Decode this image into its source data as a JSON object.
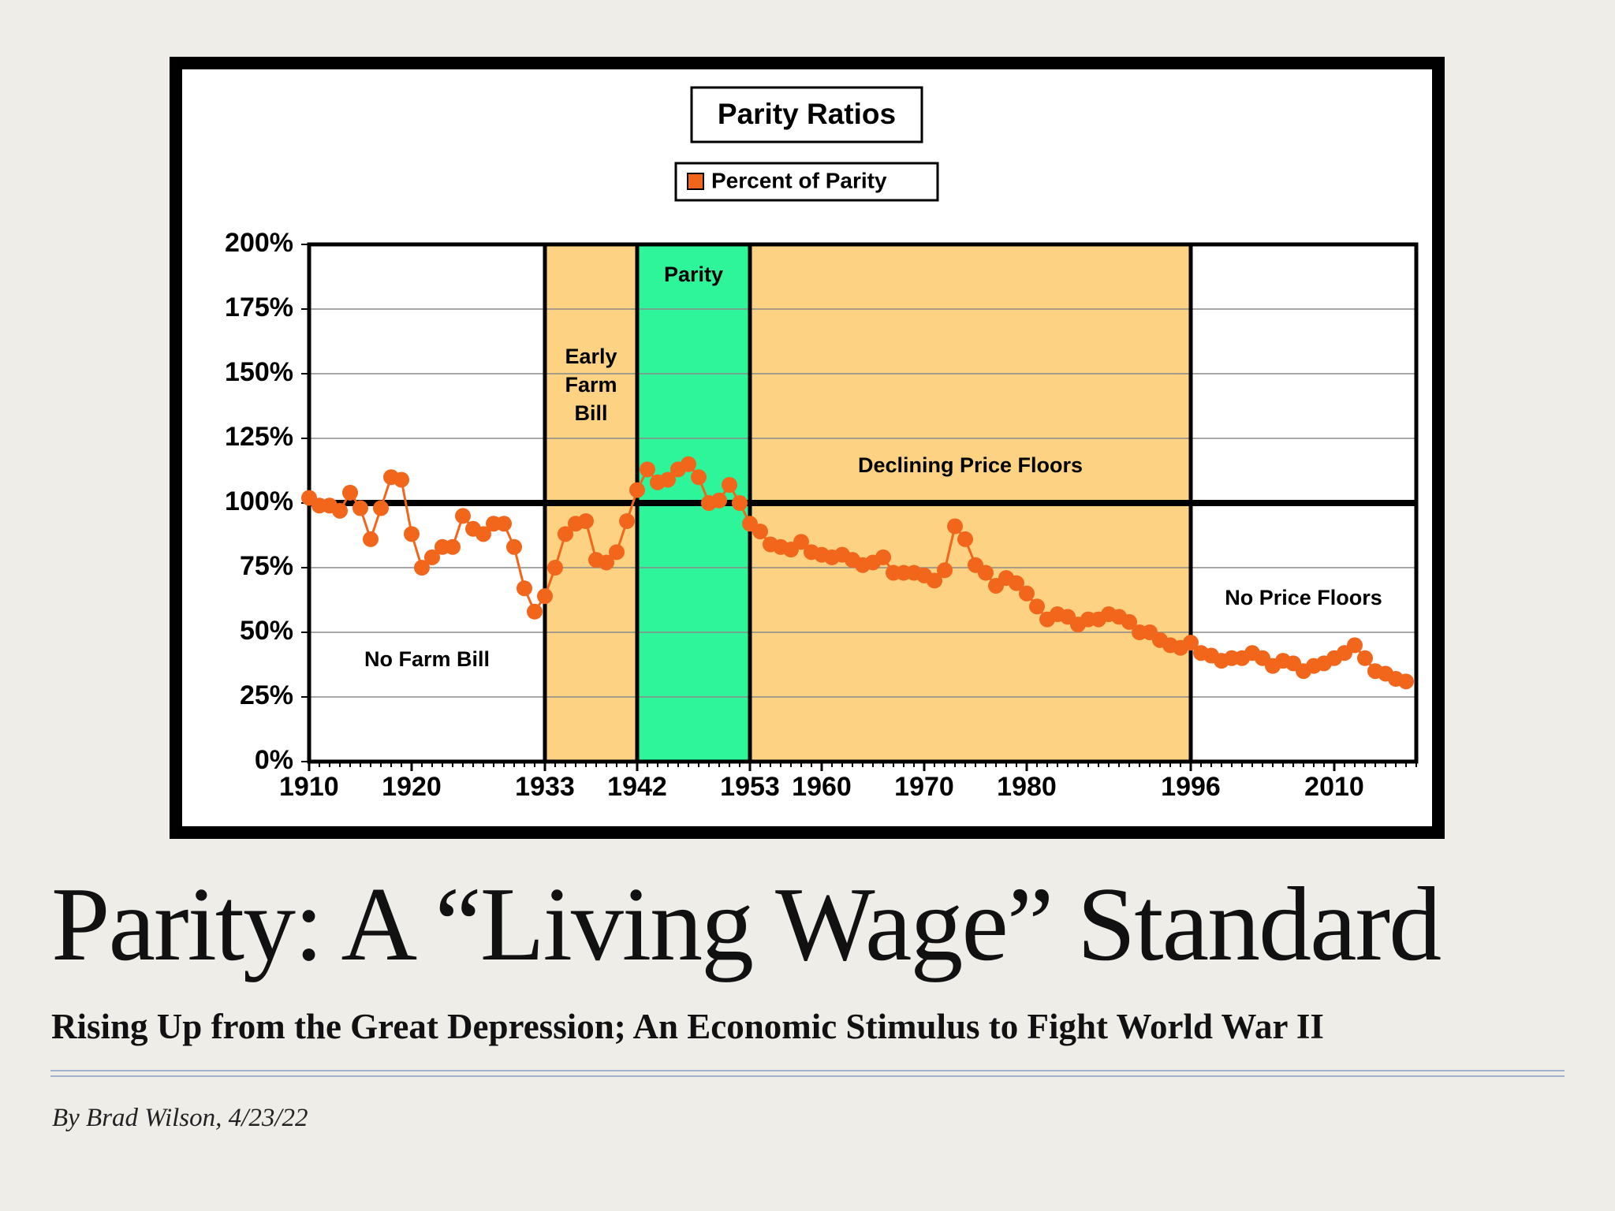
{
  "chart_data": {
    "type": "line",
    "title": "Parity Ratios",
    "x": [
      1910,
      1911,
      1912,
      1913,
      1914,
      1915,
      1916,
      1917,
      1918,
      1919,
      1920,
      1921,
      1922,
      1923,
      1924,
      1925,
      1926,
      1927,
      1928,
      1929,
      1930,
      1931,
      1932,
      1933,
      1934,
      1935,
      1936,
      1937,
      1938,
      1939,
      1940,
      1941,
      1942,
      1943,
      1944,
      1945,
      1946,
      1947,
      1948,
      1949,
      1950,
      1951,
      1952,
      1953,
      1954,
      1955,
      1956,
      1957,
      1958,
      1959,
      1960,
      1961,
      1962,
      1963,
      1964,
      1965,
      1966,
      1967,
      1968,
      1969,
      1970,
      1971,
      1972,
      1973,
      1974,
      1975,
      1976,
      1977,
      1978,
      1979,
      1980,
      1981,
      1982,
      1983,
      1984,
      1985,
      1986,
      1987,
      1988,
      1989,
      1990,
      1991,
      1992,
      1993,
      1994,
      1995,
      1996,
      1997,
      1998,
      1999,
      2000,
      2001,
      2002,
      2003,
      2004,
      2005,
      2006,
      2007,
      2008,
      2009,
      2010,
      2011,
      2012,
      2013,
      2014,
      2015,
      2016,
      2017
    ],
    "series": [
      {
        "name": "Percent of Parity",
        "color": "#f2661c",
        "values": [
          102,
          99,
          99,
          97,
          104,
          98,
          86,
          98,
          110,
          109,
          88,
          75,
          79,
          83,
          83,
          95,
          90,
          88,
          92,
          92,
          83,
          67,
          58,
          64,
          75,
          88,
          92,
          93,
          78,
          77,
          81,
          93,
          105,
          113,
          108,
          109,
          113,
          115,
          110,
          100,
          101,
          107,
          100,
          92,
          89,
          84,
          83,
          82,
          85,
          81,
          80,
          79,
          80,
          78,
          76,
          77,
          79,
          73,
          73,
          73,
          72,
          70,
          74,
          91,
          86,
          76,
          73,
          68,
          71,
          69,
          65,
          60,
          55,
          57,
          56,
          53,
          55,
          55,
          57,
          56,
          54,
          50,
          50,
          47,
          45,
          44,
          46,
          42,
          41,
          39,
          40,
          40,
          42,
          40,
          37,
          39,
          38,
          35,
          37,
          38,
          40,
          42,
          45,
          40,
          35,
          34,
          32,
          31
        ]
      }
    ],
    "xlim": [
      1910,
      2018
    ],
    "ylim": [
      0,
      200
    ],
    "xticks": [
      1910,
      1920,
      1933,
      1942,
      1953,
      1960,
      1970,
      1980,
      1996,
      2010
    ],
    "yticks": [
      {
        "value": 0,
        "label": "0%"
      },
      {
        "value": 25,
        "label": "25%"
      },
      {
        "value": 50,
        "label": "50%"
      },
      {
        "value": 75,
        "label": "75%"
      },
      {
        "value": 100,
        "label": "100%"
      },
      {
        "value": 125,
        "label": "125%"
      },
      {
        "value": 150,
        "label": "150%"
      },
      {
        "value": 175,
        "label": "175%"
      },
      {
        "value": 200,
        "label": "200%"
      }
    ],
    "grid": true,
    "reference_line": 100,
    "regions": [
      {
        "label": "No Farm Bill",
        "start": 1910,
        "end": 1933,
        "color": "#ffffff"
      },
      {
        "label": "Early Farm Bill",
        "start": 1933,
        "end": 1942,
        "color": "#fdd383"
      },
      {
        "label": "Parity",
        "start": 1942,
        "end": 1953,
        "color": "#2ef59a"
      },
      {
        "label": "Declining Price Floors",
        "start": 1953,
        "end": 1996,
        "color": "#fdd383"
      },
      {
        "label": "No Price Floors",
        "start": 1996,
        "end": 2018,
        "color": "#ffffff"
      }
    ]
  },
  "slide": {
    "title": "Parity:  A “Living Wage” Standard",
    "subtitle": "Rising Up from the Great Depression; An Economic Stimulus to Fight World War II",
    "byline": "By Brad Wilson, 4/23/22"
  }
}
